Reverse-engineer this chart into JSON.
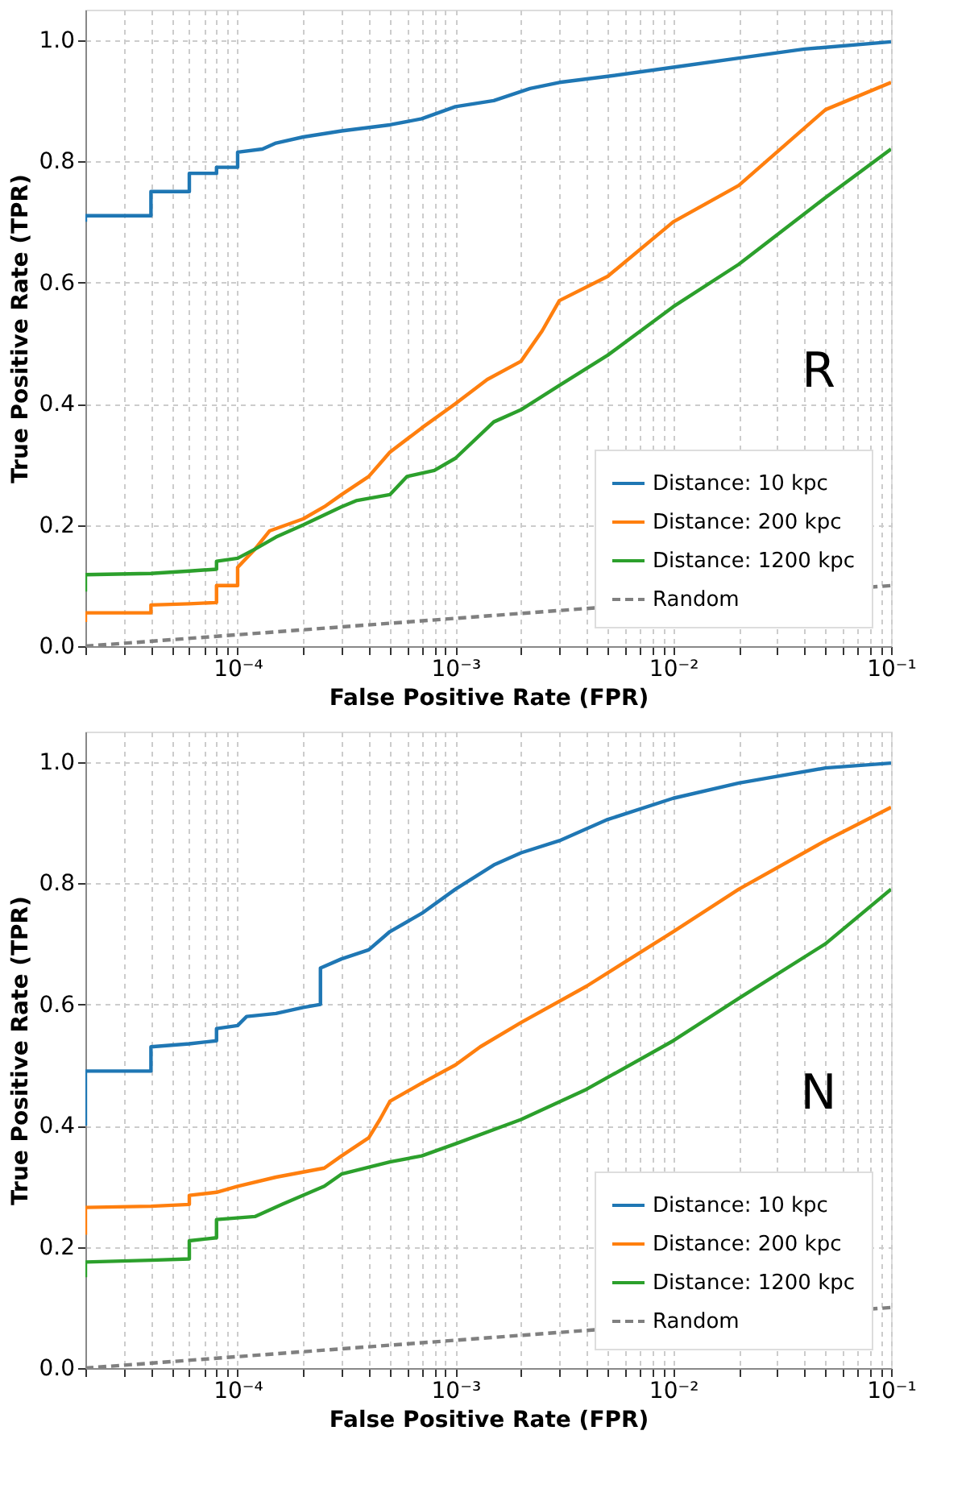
{
  "chart_data": [
    {
      "type": "line",
      "xlabel": "False Positive Rate (FPR)",
      "ylabel": "True Positive Rate (TPR)",
      "annotations": [
        "R"
      ],
      "log": "x",
      "grid": true,
      "legend": "bottom right",
      "xlim": [
        2e-05,
        0.1
      ],
      "ylim": [
        0,
        1.05
      ],
      "xticks": [
        {
          "value": 2e-05,
          "label": null
        },
        {
          "value": 3e-05,
          "label": null
        },
        {
          "value": 4e-05,
          "label": null
        },
        {
          "value": 5e-05,
          "label": null
        },
        {
          "value": 6e-05,
          "label": null
        },
        {
          "value": 7e-05,
          "label": null
        },
        {
          "value": 8e-05,
          "label": null
        },
        {
          "value": 9e-05,
          "label": null
        },
        {
          "value": 0.0001,
          "label": "10⁻⁴"
        },
        {
          "value": 0.0002,
          "label": null
        },
        {
          "value": 0.0003,
          "label": null
        },
        {
          "value": 0.0004,
          "label": null
        },
        {
          "value": 0.0005,
          "label": null
        },
        {
          "value": 0.0006,
          "label": null
        },
        {
          "value": 0.0007,
          "label": null
        },
        {
          "value": 0.0008,
          "label": null
        },
        {
          "value": 0.0009,
          "label": null
        },
        {
          "value": 0.001,
          "label": "10⁻³"
        },
        {
          "value": 0.002,
          "label": null
        },
        {
          "value": 0.003,
          "label": null
        },
        {
          "value": 0.004,
          "label": null
        },
        {
          "value": 0.005,
          "label": null
        },
        {
          "value": 0.006,
          "label": null
        },
        {
          "value": 0.007,
          "label": null
        },
        {
          "value": 0.008,
          "label": null
        },
        {
          "value": 0.009,
          "label": null
        },
        {
          "value": 0.01,
          "label": "10⁻²"
        },
        {
          "value": 0.02,
          "label": null
        },
        {
          "value": 0.03,
          "label": null
        },
        {
          "value": 0.04,
          "label": null
        },
        {
          "value": 0.05,
          "label": null
        },
        {
          "value": 0.06,
          "label": null
        },
        {
          "value": 0.07,
          "label": null
        },
        {
          "value": 0.08,
          "label": null
        },
        {
          "value": 0.09,
          "label": null
        },
        {
          "value": 0.1,
          "label": "10⁻¹"
        }
      ],
      "yticks": [
        {
          "value": 0,
          "label": "0.0"
        },
        {
          "value": 0.2,
          "label": "0.2"
        },
        {
          "value": 0.4,
          "label": "0.4"
        },
        {
          "value": 0.6,
          "label": "0.6"
        },
        {
          "value": 0.8,
          "label": "0.8"
        },
        {
          "value": 1,
          "label": "1.0"
        }
      ],
      "series": [
        {
          "name": "Distance: 10 kpc",
          "color": "#1f77b4",
          "line_style": "solid",
          "x": [
            2e-05,
            2e-05,
            4e-05,
            4e-05,
            6e-05,
            6e-05,
            8e-05,
            8e-05,
            0.0001,
            0.0001,
            0.00013,
            0.00015,
            0.0002,
            0.0003,
            0.0005,
            0.0007,
            0.001,
            0.0015,
            0.0022,
            0.003,
            0.005,
            0.01,
            0.02,
            0.04,
            0.1
          ],
          "values": [
            0.7,
            0.71,
            0.71,
            0.75,
            0.75,
            0.78,
            0.78,
            0.79,
            0.79,
            0.815,
            0.82,
            0.83,
            0.84,
            0.85,
            0.86,
            0.87,
            0.89,
            0.9,
            0.92,
            0.93,
            0.94,
            0.955,
            0.97,
            0.985,
            0.997
          ]
        },
        {
          "name": "Distance: 200 kpc",
          "color": "#ff7f0e",
          "line_style": "solid",
          "x": [
            2e-05,
            2e-05,
            4e-05,
            4e-05,
            6e-05,
            8e-05,
            8e-05,
            0.0001,
            0.0001,
            0.00012,
            0.00014,
            0.0002,
            0.00025,
            0.0003,
            0.0004,
            0.0005,
            0.0007,
            0.001,
            0.0014,
            0.002,
            0.0025,
            0.003,
            0.005,
            0.01,
            0.02,
            0.05,
            0.1
          ],
          "values": [
            0.04,
            0.055,
            0.055,
            0.068,
            0.07,
            0.072,
            0.1,
            0.1,
            0.13,
            0.16,
            0.19,
            0.21,
            0.23,
            0.25,
            0.28,
            0.32,
            0.36,
            0.4,
            0.44,
            0.47,
            0.52,
            0.57,
            0.61,
            0.7,
            0.76,
            0.885,
            0.93
          ]
        },
        {
          "name": "Distance: 1200 kpc",
          "color": "#2ca02c",
          "line_style": "solid",
          "x": [
            2e-05,
            2e-05,
            4e-05,
            6e-05,
            8e-05,
            8e-05,
            0.0001,
            0.00012,
            0.00015,
            0.0002,
            0.0003,
            0.00035,
            0.0005,
            0.0006,
            0.0008,
            0.001,
            0.0015,
            0.002,
            0.003,
            0.005,
            0.01,
            0.02,
            0.05,
            0.1
          ],
          "values": [
            0.09,
            0.118,
            0.12,
            0.124,
            0.127,
            0.14,
            0.145,
            0.16,
            0.18,
            0.2,
            0.23,
            0.24,
            0.25,
            0.28,
            0.29,
            0.31,
            0.37,
            0.39,
            0.43,
            0.48,
            0.56,
            0.63,
            0.74,
            0.82
          ]
        },
        {
          "name": "Random",
          "color": "#808080",
          "line_style": "dashed",
          "x": [
            2e-05,
            0.1
          ],
          "values": [
            0,
            0.1
          ]
        }
      ]
    },
    {
      "type": "line",
      "xlabel": "False Positive Rate (FPR)",
      "ylabel": "True Positive Rate (TPR)",
      "annotations": [
        "N"
      ],
      "log": "x",
      "grid": true,
      "legend": "bottom right",
      "xlim": [
        2e-05,
        0.1
      ],
      "ylim": [
        0,
        1.05
      ],
      "xticks": [
        {
          "value": 2e-05,
          "label": null
        },
        {
          "value": 3e-05,
          "label": null
        },
        {
          "value": 4e-05,
          "label": null
        },
        {
          "value": 5e-05,
          "label": null
        },
        {
          "value": 6e-05,
          "label": null
        },
        {
          "value": 7e-05,
          "label": null
        },
        {
          "value": 8e-05,
          "label": null
        },
        {
          "value": 9e-05,
          "label": null
        },
        {
          "value": 0.0001,
          "label": "10⁻⁴"
        },
        {
          "value": 0.0002,
          "label": null
        },
        {
          "value": 0.0003,
          "label": null
        },
        {
          "value": 0.0004,
          "label": null
        },
        {
          "value": 0.0005,
          "label": null
        },
        {
          "value": 0.0006,
          "label": null
        },
        {
          "value": 0.0007,
          "label": null
        },
        {
          "value": 0.0008,
          "label": null
        },
        {
          "value": 0.0009,
          "label": null
        },
        {
          "value": 0.001,
          "label": "10⁻³"
        },
        {
          "value": 0.002,
          "label": null
        },
        {
          "value": 0.003,
          "label": null
        },
        {
          "value": 0.004,
          "label": null
        },
        {
          "value": 0.005,
          "label": null
        },
        {
          "value": 0.006,
          "label": null
        },
        {
          "value": 0.007,
          "label": null
        },
        {
          "value": 0.008,
          "label": null
        },
        {
          "value": 0.009,
          "label": null
        },
        {
          "value": 0.01,
          "label": "10⁻²"
        },
        {
          "value": 0.02,
          "label": null
        },
        {
          "value": 0.03,
          "label": null
        },
        {
          "value": 0.04,
          "label": null
        },
        {
          "value": 0.05,
          "label": null
        },
        {
          "value": 0.06,
          "label": null
        },
        {
          "value": 0.07,
          "label": null
        },
        {
          "value": 0.08,
          "label": null
        },
        {
          "value": 0.09,
          "label": null
        },
        {
          "value": 0.1,
          "label": "10⁻¹"
        }
      ],
      "yticks": [
        {
          "value": 0,
          "label": "0.0"
        },
        {
          "value": 0.2,
          "label": "0.2"
        },
        {
          "value": 0.4,
          "label": "0.4"
        },
        {
          "value": 0.6,
          "label": "0.6"
        },
        {
          "value": 0.8,
          "label": "0.8"
        },
        {
          "value": 1,
          "label": "1.0"
        }
      ],
      "series": [
        {
          "name": "Distance: 10 kpc",
          "color": "#1f77b4",
          "line_style": "solid",
          "x": [
            2e-05,
            2e-05,
            4e-05,
            4e-05,
            6e-05,
            8e-05,
            8e-05,
            0.0001,
            0.00011,
            0.00015,
            0.0002,
            0.00024,
            0.00024,
            0.0003,
            0.0004,
            0.0005,
            0.0007,
            0.001,
            0.0015,
            0.002,
            0.003,
            0.005,
            0.01,
            0.02,
            0.05,
            0.1
          ],
          "values": [
            0.4,
            0.49,
            0.49,
            0.53,
            0.535,
            0.54,
            0.56,
            0.565,
            0.58,
            0.585,
            0.595,
            0.6,
            0.66,
            0.675,
            0.69,
            0.72,
            0.75,
            0.79,
            0.83,
            0.85,
            0.87,
            0.905,
            0.94,
            0.965,
            0.99,
            0.998
          ]
        },
        {
          "name": "Distance: 200 kpc",
          "color": "#ff7f0e",
          "line_style": "solid",
          "x": [
            2e-05,
            2e-05,
            4e-05,
            6e-05,
            6e-05,
            8e-05,
            0.0001,
            0.00015,
            0.00025,
            0.0003,
            0.0004,
            0.00045,
            0.0005,
            0.0007,
            0.001,
            0.0013,
            0.002,
            0.004,
            0.01,
            0.02,
            0.05,
            0.1
          ],
          "values": [
            0.22,
            0.265,
            0.267,
            0.27,
            0.285,
            0.29,
            0.3,
            0.315,
            0.33,
            0.35,
            0.38,
            0.41,
            0.44,
            0.47,
            0.5,
            0.53,
            0.57,
            0.63,
            0.72,
            0.79,
            0.87,
            0.925
          ]
        },
        {
          "name": "Distance: 1200 kpc",
          "color": "#2ca02c",
          "line_style": "solid",
          "x": [
            2e-05,
            2e-05,
            4e-05,
            6e-05,
            6e-05,
            8e-05,
            8e-05,
            0.00012,
            0.00016,
            0.0002,
            0.00025,
            0.0003,
            0.0005,
            0.0007,
            0.001,
            0.002,
            0.004,
            0.01,
            0.02,
            0.05,
            0.1
          ],
          "values": [
            0.15,
            0.175,
            0.178,
            0.18,
            0.21,
            0.215,
            0.245,
            0.25,
            0.27,
            0.285,
            0.3,
            0.32,
            0.34,
            0.35,
            0.37,
            0.41,
            0.46,
            0.54,
            0.61,
            0.7,
            0.79
          ]
        },
        {
          "name": "Random",
          "color": "#808080",
          "line_style": "dashed",
          "x": [
            2e-05,
            0.1
          ],
          "values": [
            0,
            0.1
          ]
        }
      ]
    }
  ]
}
